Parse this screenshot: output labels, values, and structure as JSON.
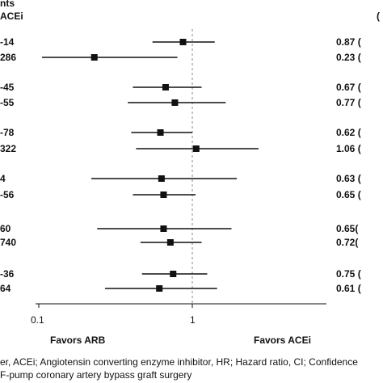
{
  "header": {
    "line1": "nts",
    "line2": "ACEi",
    "right": "("
  },
  "chart_data": {
    "type": "forest",
    "x_scale": "log",
    "xlim": [
      0.1,
      3
    ],
    "reference_line": 1,
    "ticks": [
      "0.1",
      "1"
    ],
    "favors_left": "Favors ARB",
    "favors_right": "Favors ACEi",
    "rows": [
      {
        "left": "-14",
        "hr": 0.87,
        "ci": [
          0.55,
          1.4
        ],
        "right": "0.87 ("
      },
      {
        "left": "286",
        "hr": 0.23,
        "ci": [
          0.105,
          0.8
        ],
        "right": "0.23 ("
      },
      {
        "left": "-45",
        "hr": 0.67,
        "ci": [
          0.41,
          1.15
        ],
        "right": "0.67 ("
      },
      {
        "left": "-55",
        "hr": 0.77,
        "ci": [
          0.38,
          1.65
        ],
        "right": "0.77 ("
      },
      {
        "left": "-78",
        "hr": 0.62,
        "ci": [
          0.4,
          1.0
        ],
        "right": "0.62 ("
      },
      {
        "left": "322",
        "hr": 1.06,
        "ci": [
          0.43,
          2.7
        ],
        "right": "1.06 ("
      },
      {
        "left": "4",
        "hr": 0.63,
        "ci": [
          0.22,
          1.95
        ],
        "right": "0.63 ("
      },
      {
        "left": "-56",
        "hr": 0.65,
        "ci": [
          0.41,
          1.05
        ],
        "right": "0.65 ("
      },
      {
        "left": "60",
        "hr": 0.65,
        "ci": [
          0.24,
          1.8
        ],
        "right": "0.65("
      },
      {
        "left": "740",
        "hr": 0.72,
        "ci": [
          0.46,
          1.15
        ],
        "right": "0.72("
      },
      {
        "left": "-36",
        "hr": 0.75,
        "ci": [
          0.47,
          1.25
        ],
        "right": "0.75 ("
      },
      {
        "left": "64",
        "hr": 0.61,
        "ci": [
          0.27,
          1.45
        ],
        "right": "0.61 ("
      }
    ]
  },
  "footnote": {
    "line1": "er, ACEi; Angiotensin converting enzyme inhibitor, HR; Hazard ratio, CI; Confidence",
    "line2": "F-pump coronary artery bypass graft surgery"
  },
  "colors": {
    "ink": "#111111",
    "reference": "#888888"
  }
}
